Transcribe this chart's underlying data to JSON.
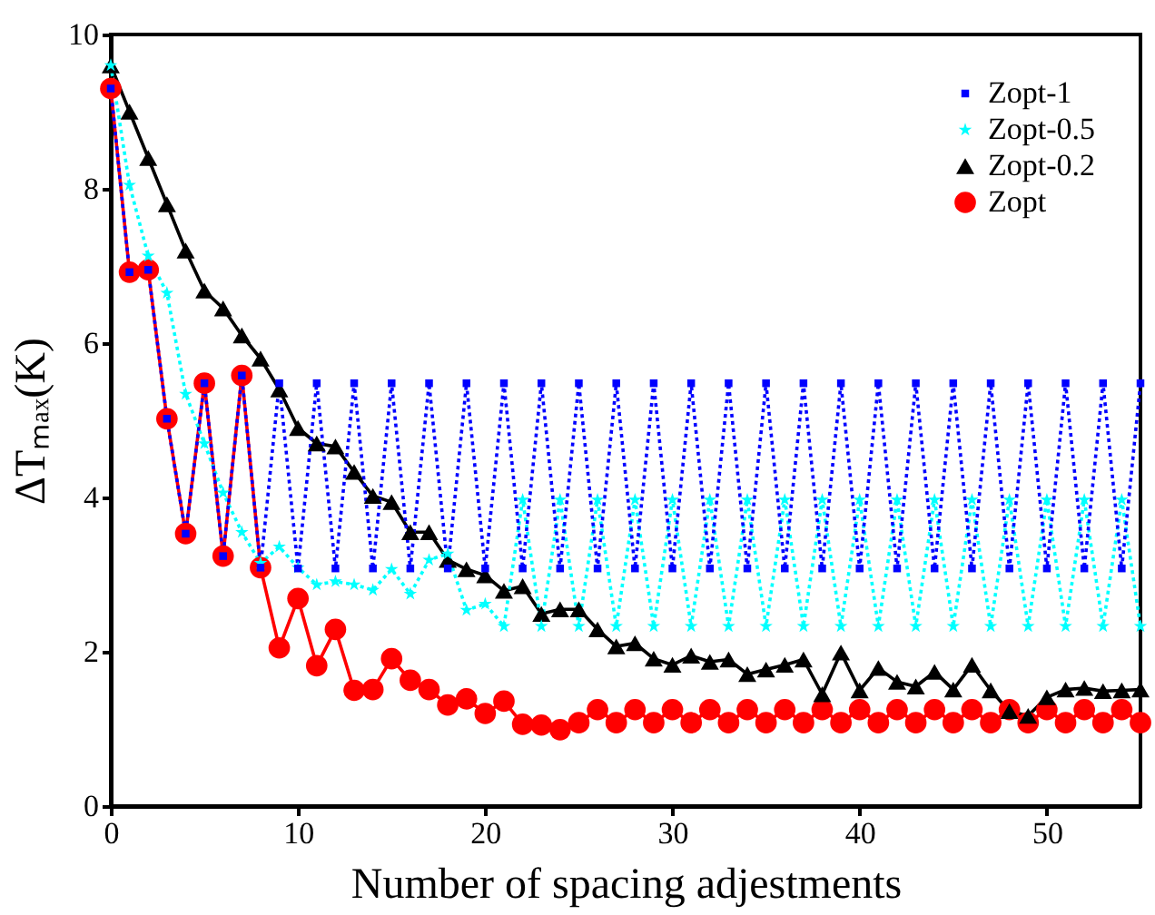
{
  "chart_data": {
    "type": "line",
    "xlabel": "Number of spacing adjestments",
    "ylabel": "ΔTₘₐₓ(K)",
    "x": [
      0,
      1,
      2,
      3,
      4,
      5,
      6,
      7,
      8,
      9,
      10,
      11,
      12,
      13,
      14,
      15,
      16,
      17,
      18,
      19,
      20,
      21,
      22,
      23,
      24,
      25,
      26,
      27,
      28,
      29,
      30,
      31,
      32,
      33,
      34,
      35,
      36,
      37,
      38,
      39,
      40,
      41,
      42,
      43,
      44,
      45,
      46,
      47,
      48,
      49,
      50,
      51,
      52,
      53,
      54,
      55
    ],
    "xlim": [
      0,
      55
    ],
    "xticks": [
      0,
      10,
      20,
      30,
      40,
      50
    ],
    "ylim": [
      0,
      10
    ],
    "yticks": [
      0,
      2,
      4,
      6,
      8,
      10
    ],
    "grid": false,
    "legend": "top right",
    "series": [
      {
        "name": "Zopt-1",
        "color": "#0000ff",
        "marker": "square",
        "line_style": "dotted",
        "values": [
          9.3,
          6.92,
          6.95,
          5.02,
          3.53,
          5.48,
          3.24,
          5.58,
          3.09,
          5.48,
          3.08,
          5.48,
          3.08,
          5.48,
          3.08,
          5.48,
          3.08,
          5.48,
          3.08,
          5.48,
          3.08,
          5.48,
          3.08,
          5.48,
          3.08,
          5.48,
          3.08,
          5.48,
          3.08,
          5.48,
          3.08,
          5.48,
          3.08,
          5.48,
          3.08,
          5.48,
          3.08,
          5.48,
          3.08,
          5.48,
          3.08,
          5.48,
          3.08,
          5.48,
          3.08,
          5.48,
          3.08,
          5.48,
          3.08,
          5.48,
          3.08,
          5.48,
          3.08,
          5.48,
          3.08,
          5.48
        ]
      },
      {
        "name": "Zopt-0.5",
        "color": "#00ffff",
        "marker": "star",
        "line_style": "dotted",
        "values": [
          9.6,
          8.05,
          7.13,
          6.65,
          5.34,
          4.7,
          4.06,
          3.55,
          3.15,
          3.36,
          3.09,
          2.87,
          2.91,
          2.87,
          2.8,
          3.07,
          2.75,
          3.19,
          3.27,
          2.54,
          2.62,
          2.33,
          3.97,
          2.33,
          3.97,
          2.33,
          3.97,
          2.33,
          3.97,
          2.33,
          3.97,
          2.33,
          3.97,
          2.33,
          3.97,
          2.33,
          3.97,
          2.33,
          3.97,
          2.33,
          3.97,
          2.33,
          3.97,
          2.33,
          3.97,
          2.33,
          3.97,
          2.33,
          3.97,
          2.33,
          3.97,
          2.33,
          3.97,
          2.33,
          3.97,
          2.33
        ]
      },
      {
        "name": "Zopt-0.2",
        "color": "#000000",
        "marker": "triangle",
        "line_style": "solid",
        "values": [
          9.6,
          9.0,
          8.4,
          7.8,
          7.2,
          6.68,
          6.45,
          6.1,
          5.8,
          5.4,
          4.9,
          4.7,
          4.66,
          4.33,
          4.02,
          3.94,
          3.55,
          3.55,
          3.19,
          3.07,
          2.99,
          2.79,
          2.85,
          2.49,
          2.55,
          2.55,
          2.29,
          2.07,
          2.11,
          1.91,
          1.83,
          1.95,
          1.87,
          1.9,
          1.71,
          1.77,
          1.83,
          1.9,
          1.45,
          1.99,
          1.5,
          1.79,
          1.61,
          1.55,
          1.74,
          1.51,
          1.83,
          1.5,
          1.23,
          1.17,
          1.41,
          1.51,
          1.53,
          1.49,
          1.5,
          1.51
        ]
      },
      {
        "name": "Zopt",
        "color": "#ff0000",
        "marker": "circle",
        "line_style": "solid",
        "values": [
          9.3,
          6.92,
          6.95,
          5.02,
          3.53,
          5.48,
          3.24,
          5.58,
          3.09,
          2.05,
          2.69,
          1.82,
          2.29,
          1.5,
          1.51,
          1.91,
          1.63,
          1.51,
          1.31,
          1.39,
          1.2,
          1.36,
          1.06,
          1.05,
          0.99,
          1.08,
          1.25,
          1.08,
          1.25,
          1.08,
          1.25,
          1.08,
          1.25,
          1.08,
          1.25,
          1.08,
          1.25,
          1.08,
          1.25,
          1.08,
          1.25,
          1.08,
          1.25,
          1.08,
          1.25,
          1.08,
          1.25,
          1.08,
          1.25,
          1.08,
          1.25,
          1.08,
          1.25,
          1.08,
          1.25,
          1.08
        ]
      }
    ]
  }
}
